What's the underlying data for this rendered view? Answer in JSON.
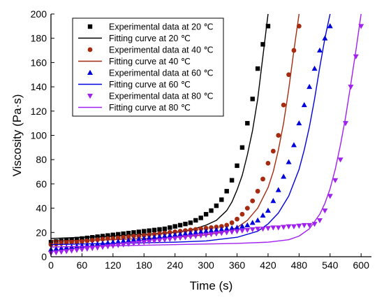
{
  "chart_data": {
    "type": "scatter",
    "xlabel": "Time (s)",
    "ylabel": "Viscosity (Pa·s)",
    "xlim": [
      0,
      620
    ],
    "ylim": [
      0,
      200
    ],
    "xticks": [
      0,
      60,
      120,
      180,
      240,
      300,
      360,
      420,
      480,
      540,
      600
    ],
    "yticks": [
      0,
      20,
      40,
      60,
      80,
      100,
      120,
      140,
      160,
      180,
      200
    ],
    "grid": false,
    "legend_position": "top-left",
    "series": [
      {
        "name": "Experimental data at 20 ℃",
        "kind": "scatter",
        "marker": "square",
        "color": "#000000",
        "x": [
          0,
          10,
          20,
          30,
          40,
          50,
          60,
          70,
          80,
          90,
          100,
          110,
          120,
          130,
          140,
          150,
          160,
          170,
          180,
          190,
          200,
          210,
          220,
          230,
          240,
          250,
          260,
          270,
          280,
          290,
          300,
          310,
          320,
          330,
          340,
          350,
          360,
          370,
          380,
          390,
          400,
          410,
          420
        ],
        "y": [
          12,
          12.5,
          13,
          13.5,
          14,
          14.5,
          15,
          15.5,
          16,
          16.5,
          17,
          17.5,
          18,
          18.5,
          19,
          19.5,
          20,
          20.5,
          21,
          21.5,
          22,
          22.5,
          23,
          24,
          25,
          26,
          27,
          28,
          30,
          32,
          35,
          38,
          42,
          47,
          54,
          63,
          75,
          90,
          110,
          130,
          155,
          175,
          190
        ]
      },
      {
        "name": "Fitting curve at 20 ℃",
        "kind": "line",
        "color": "#000000",
        "x": [
          0,
          60,
          120,
          180,
          240,
          270,
          300,
          320,
          340,
          350,
          360,
          370,
          380,
          390,
          400,
          410,
          420
        ],
        "y": [
          15,
          16,
          17,
          18.5,
          20,
          22,
          26,
          30,
          38,
          45,
          55,
          67,
          84,
          104,
          130,
          165,
          200
        ]
      },
      {
        "name": "Experimental data at 40 ℃",
        "kind": "scatter",
        "marker": "circle",
        "color": "#a52a10",
        "x": [
          0,
          10,
          20,
          30,
          40,
          50,
          60,
          70,
          80,
          90,
          100,
          110,
          120,
          130,
          140,
          150,
          160,
          170,
          180,
          190,
          200,
          210,
          220,
          230,
          240,
          250,
          260,
          270,
          280,
          290,
          300,
          310,
          320,
          330,
          340,
          350,
          360,
          370,
          380,
          390,
          400,
          410,
          420,
          430,
          440,
          450,
          460,
          470,
          480
        ],
        "y": [
          10,
          10.5,
          11,
          11.5,
          12,
          12,
          12.5,
          13,
          13.5,
          14,
          14.5,
          15,
          15,
          15.5,
          16,
          16.5,
          17,
          17,
          17.5,
          18,
          18.5,
          19,
          19.5,
          20,
          20.5,
          21,
          21.5,
          22,
          22.5,
          23,
          23.5,
          24,
          24.5,
          25,
          26,
          28,
          31,
          35,
          40,
          46,
          54,
          64,
          77,
          87,
          100,
          125,
          150,
          170,
          190
        ]
      },
      {
        "name": "Fitting curve at 40 ℃",
        "kind": "line",
        "color": "#a52a10",
        "x": [
          0,
          60,
          120,
          180,
          240,
          300,
          330,
          360,
          380,
          400,
          420,
          430,
          440,
          450,
          460,
          470,
          480
        ],
        "y": [
          13,
          13.5,
          14,
          15,
          16,
          18,
          20,
          24,
          30,
          40,
          57,
          70,
          88,
          110,
          138,
          170,
          200
        ]
      },
      {
        "name": "Experimental data at 60 ℃",
        "kind": "scatter",
        "marker": "triangle-up",
        "color": "#0000dd",
        "x": [
          0,
          10,
          20,
          30,
          40,
          50,
          60,
          70,
          80,
          90,
          100,
          110,
          120,
          130,
          140,
          150,
          160,
          170,
          180,
          190,
          200,
          210,
          220,
          230,
          240,
          250,
          260,
          270,
          280,
          290,
          300,
          310,
          320,
          330,
          340,
          350,
          360,
          370,
          380,
          390,
          400,
          410,
          420,
          430,
          440,
          450,
          460,
          470,
          480,
          490,
          500,
          510,
          520,
          530,
          540
        ],
        "y": [
          6,
          6.5,
          7,
          7.5,
          8,
          8.5,
          9,
          9.5,
          10,
          10.5,
          11,
          11.5,
          12,
          12.5,
          13,
          13.5,
          14,
          14.5,
          15,
          15.5,
          16,
          16.5,
          17,
          17.5,
          18,
          18.5,
          19,
          19.5,
          20,
          20.5,
          21,
          21.5,
          22,
          22.5,
          23,
          23.5,
          24,
          25,
          26,
          28,
          30,
          34,
          38,
          46,
          55,
          66,
          78,
          92,
          110,
          125,
          140,
          155,
          170,
          180,
          190
        ]
      },
      {
        "name": "Fitting curve at 60 ℃",
        "kind": "line",
        "color": "#0000dd",
        "x": [
          0,
          60,
          120,
          180,
          240,
          300,
          360,
          400,
          420,
          440,
          460,
          480,
          490,
          500,
          510,
          520,
          530,
          540
        ],
        "y": [
          10,
          10.5,
          11,
          11.5,
          12,
          13,
          16,
          21,
          27,
          36,
          50,
          72,
          88,
          107,
          130,
          156,
          180,
          200
        ]
      },
      {
        "name": "Experimental data at 80 ℃",
        "kind": "scatter",
        "marker": "triangle-down",
        "color": "#a020f0",
        "x": [
          0,
          10,
          20,
          30,
          40,
          50,
          60,
          70,
          80,
          90,
          100,
          110,
          120,
          130,
          140,
          150,
          160,
          170,
          180,
          190,
          200,
          210,
          220,
          230,
          240,
          250,
          260,
          270,
          280,
          290,
          300,
          310,
          320,
          330,
          340,
          350,
          360,
          370,
          380,
          390,
          400,
          410,
          420,
          430,
          440,
          450,
          460,
          470,
          480,
          490,
          500,
          510,
          520,
          530,
          540,
          550,
          560,
          570,
          580,
          590,
          600
        ],
        "y": [
          3,
          3.5,
          4,
          4.5,
          5,
          5.5,
          6,
          6.5,
          7,
          7.5,
          8,
          8.5,
          9,
          9.5,
          10,
          10.5,
          11,
          11.5,
          12,
          12.5,
          13,
          13.5,
          14,
          14.5,
          15,
          15.5,
          16,
          16.5,
          17,
          17.5,
          18,
          18.5,
          19,
          19.5,
          20,
          20.5,
          21,
          21.5,
          22,
          22.5,
          23,
          23,
          23.5,
          24,
          24,
          24.5,
          25,
          25,
          25.5,
          26,
          26,
          27,
          30,
          38,
          50,
          63,
          80,
          110,
          140,
          165,
          190
        ]
      },
      {
        "name": "Fitting curve at 80 ℃",
        "kind": "line",
        "color": "#a020f0",
        "x": [
          0,
          60,
          120,
          180,
          240,
          300,
          360,
          420,
          460,
          480,
          500,
          520,
          530,
          540,
          550,
          560,
          570,
          580,
          590,
          600
        ],
        "y": [
          8,
          8.5,
          9,
          9.5,
          10,
          10.5,
          11,
          12,
          14,
          17,
          23,
          35,
          44,
          56,
          72,
          92,
          115,
          142,
          170,
          200
        ]
      }
    ]
  }
}
